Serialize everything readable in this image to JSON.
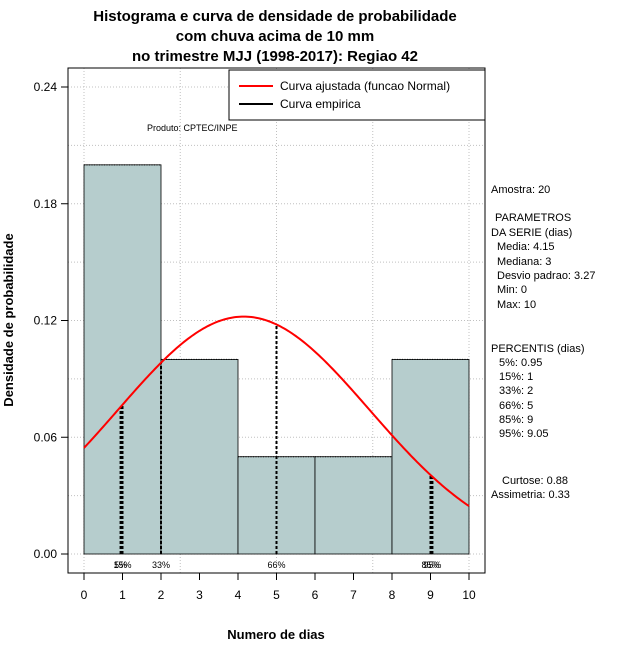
{
  "chart_data": {
    "type": "bar",
    "title_lines": [
      "Histograma e curva de densidade de probabilidade",
      "com chuva acima de 10 mm",
      "no trimestre MJJ (1998-2017): Regiao 42"
    ],
    "xlabel": "Numero de dias",
    "ylabel": "Densidade de probabilidade",
    "xlim": [
      0,
      10
    ],
    "ylim": [
      0,
      0.24
    ],
    "x_ticks": [
      0,
      1,
      2,
      3,
      4,
      5,
      6,
      7,
      8,
      9,
      10
    ],
    "y_ticks": [
      "0.00",
      "0.06",
      "0.12",
      "0.18",
      "0.24"
    ],
    "bins": [
      {
        "from": 0,
        "to": 2,
        "density": 0.2
      },
      {
        "from": 2,
        "to": 4,
        "density": 0.1
      },
      {
        "from": 4,
        "to": 6,
        "density": 0.05
      },
      {
        "from": 6,
        "to": 8,
        "density": 0.05
      },
      {
        "from": 8,
        "to": 10,
        "density": 0.1
      }
    ],
    "normal_fit": {
      "mean": 4.15,
      "sd": 3.27,
      "x_from": 0,
      "x_to": 10
    },
    "percentile_marks": [
      {
        "x": 0.95,
        "label": "5%"
      },
      {
        "x": 1,
        "label": "15%"
      },
      {
        "x": 2,
        "label": "33%"
      },
      {
        "x": 5,
        "label": "66%"
      },
      {
        "x": 9,
        "label": "85%"
      },
      {
        "x": 9.05,
        "label": "95%"
      }
    ],
    "credit": "Produto: CPTEC/INPE",
    "legend": {
      "position": "top-right",
      "entries": [
        {
          "label": "Curva ajustada (funcao Normal)",
          "color": "#ff0000"
        },
        {
          "label": "Curva empirica",
          "color": "#000000"
        }
      ]
    },
    "colors": {
      "bar_fill": "#b6cdcd",
      "fit_line": "#ff0000",
      "grid": "#c0c0c0"
    }
  },
  "stats_panel": {
    "sample": "Amostra: 20",
    "params_title": [
      "PARAMETROS",
      "DA SERIE (dias)"
    ],
    "params": [
      "Media: 4.15",
      "Mediana: 3",
      "Desvio padrao: 3.27",
      "Min: 0",
      "Max: 10"
    ],
    "percentis_title": "PERCENTIS (dias)",
    "percentis": [
      "5%: 0.95",
      "15%: 1",
      "33%: 2",
      "66%: 5",
      "85%: 9",
      "95%: 9.05"
    ],
    "shape": [
      "Curtose: 0.88",
      "Assimetria: 0.33"
    ]
  }
}
